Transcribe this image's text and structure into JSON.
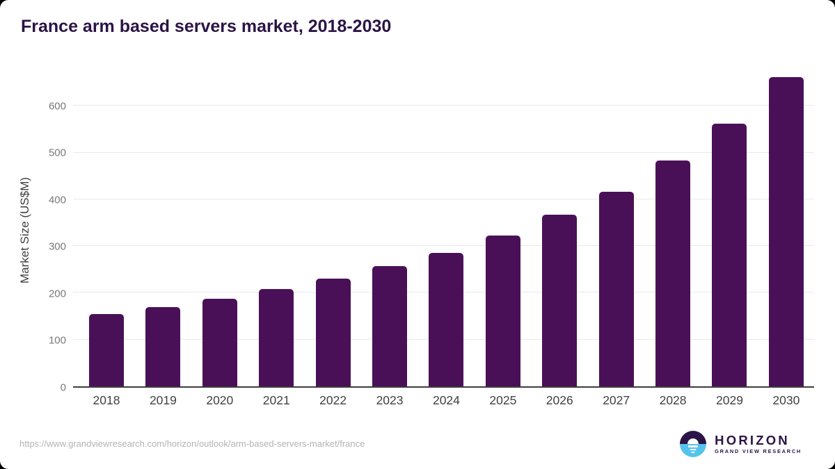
{
  "title": "France arm based servers market, 2018-2030",
  "chart_data": {
    "type": "bar",
    "title": "France arm based servers market, 2018-2030",
    "categories": [
      "2018",
      "2019",
      "2020",
      "2021",
      "2022",
      "2023",
      "2024",
      "2025",
      "2026",
      "2027",
      "2028",
      "2029",
      "2030"
    ],
    "values": [
      154,
      170,
      187,
      208,
      230,
      257,
      286,
      323,
      367,
      417,
      483,
      562,
      661
    ],
    "xlabel": "",
    "ylabel": "Market Size (US$M)",
    "yticks": [
      0,
      100,
      200,
      300,
      400,
      500,
      600
    ],
    "ylim": [
      0,
      672
    ],
    "grid": true,
    "legend": false,
    "bar_color": "#4a1057"
  },
  "footer": {
    "source_url": "https://www.grandviewresearch.com/horizon/outlook/arm-based-servers-market/france",
    "logo": {
      "name": "HORIZON",
      "subtitle": "GRAND VIEW RESEARCH",
      "icon": "horizon-sunset-logo-icon"
    }
  },
  "colors": {
    "title_text": "#2b1446",
    "bar": "#4a1057",
    "gridline": "#e9e9e9",
    "axis_line": "#3d3d3d",
    "y_tick_label": "#787878",
    "x_tick_label": "#414141",
    "url_text": "#b3b3b3",
    "logo_purple": "#2b1446",
    "logo_blue": "#55c3ee"
  }
}
